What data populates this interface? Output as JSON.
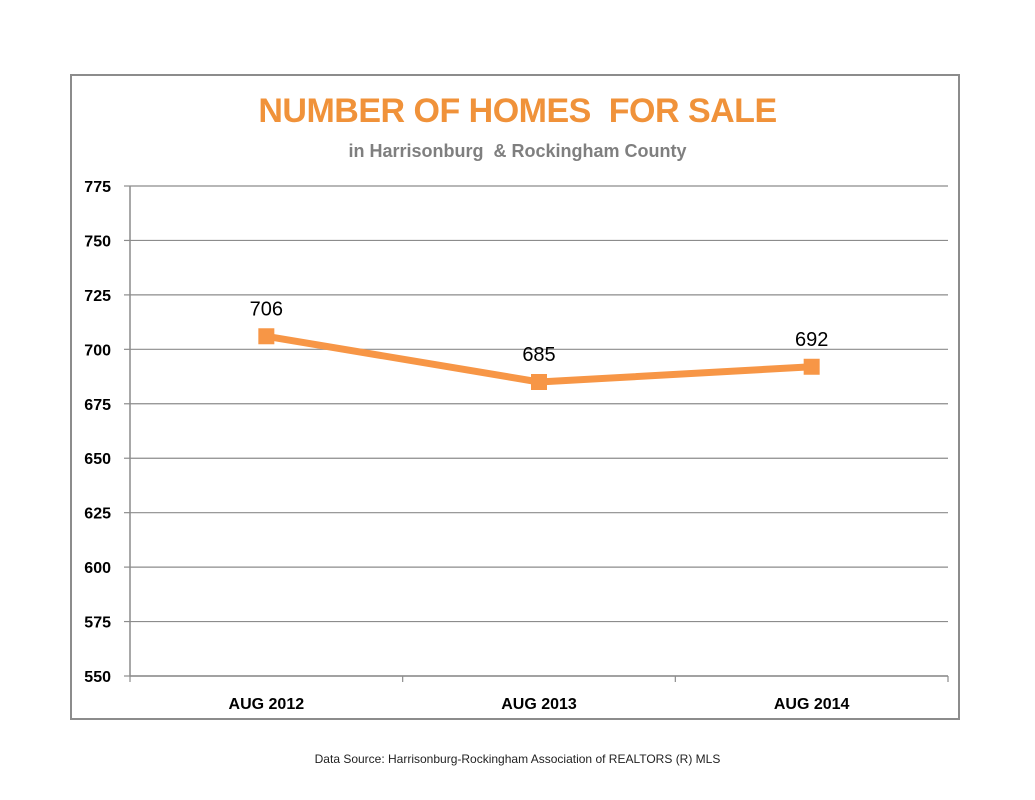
{
  "chart_data": {
    "type": "line",
    "title": "NUMBER OF HOMES  FOR SALE",
    "subtitle": "in Harrisonburg  & Rockingham County",
    "categories": [
      "AUG 2012",
      "AUG 2013",
      "AUG 2014"
    ],
    "series": [
      {
        "values": [
          706,
          685,
          692
        ],
        "data_labels": [
          "706",
          "685",
          "692"
        ]
      }
    ],
    "ylim": [
      550,
      775
    ],
    "yticks": [
      550,
      575,
      600,
      625,
      650,
      675,
      700,
      725,
      750,
      775
    ],
    "ytick_labels": [
      "550",
      "575",
      "600",
      "625",
      "650",
      "675",
      "700",
      "725",
      "750",
      "775"
    ],
    "grid": true,
    "legend": "none",
    "marker": "square",
    "colors": {
      "title": "#f0923a",
      "line": "#f79646",
      "marker": "#f79646",
      "grid": "#8c8c8c",
      "subtitle": "#7f7f7f"
    }
  },
  "footer": {
    "source": "Data Source: Harrisonburg-Rockingham Association of REALTORS (R) MLS"
  }
}
